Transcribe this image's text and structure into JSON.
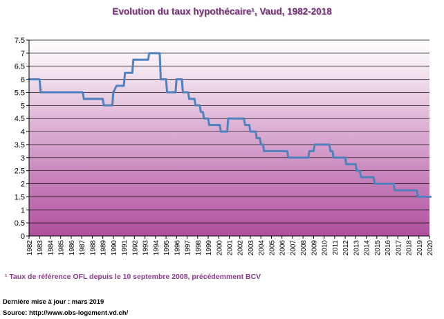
{
  "chart_data": {
    "type": "line",
    "title": "Evolution du taux hypothécaire¹, Vaud, 1982-2018",
    "xlabel": "",
    "ylabel": "",
    "xlim": [
      1982,
      2020
    ],
    "ylim": [
      0,
      7.5
    ],
    "ytick_step": 0.5,
    "x_ticks": [
      "1982",
      "1983",
      "1984",
      "1985",
      "1986",
      "1987",
      "1988",
      "1989",
      "1990",
      "1991",
      "1992",
      "1993",
      "1994",
      "1995",
      "1996",
      "1997",
      "1998",
      "1999",
      "2000",
      "2001",
      "2002",
      "2003",
      "2004",
      "2005",
      "2006",
      "2007",
      "2008",
      "2009",
      "2010",
      "2011",
      "2012",
      "2013",
      "2014",
      "2015",
      "2016",
      "2017",
      "2018",
      "2019",
      "2020"
    ],
    "grid": "horizontal",
    "legend": "none",
    "series": [
      {
        "color": "#4f81bd",
        "points": [
          [
            1982.0,
            6.0
          ],
          [
            1983.0,
            6.0
          ],
          [
            1983.1,
            5.5
          ],
          [
            1987.1,
            5.5
          ],
          [
            1987.2,
            5.25
          ],
          [
            1989.0,
            5.25
          ],
          [
            1989.1,
            5.0
          ],
          [
            1989.9,
            5.0
          ],
          [
            1990.0,
            5.5
          ],
          [
            1990.3,
            5.75
          ],
          [
            1991.0,
            5.75
          ],
          [
            1991.1,
            6.25
          ],
          [
            1991.8,
            6.25
          ],
          [
            1991.9,
            6.75
          ],
          [
            1993.3,
            6.75
          ],
          [
            1993.4,
            7.0
          ],
          [
            1994.4,
            7.0
          ],
          [
            1994.5,
            6.0
          ],
          [
            1995.0,
            6.0
          ],
          [
            1995.1,
            5.5
          ],
          [
            1995.9,
            5.5
          ],
          [
            1996.0,
            6.0
          ],
          [
            1996.5,
            6.0
          ],
          [
            1996.6,
            5.5
          ],
          [
            1997.1,
            5.5
          ],
          [
            1997.2,
            5.25
          ],
          [
            1997.7,
            5.25
          ],
          [
            1997.8,
            5.0
          ],
          [
            1998.2,
            5.0
          ],
          [
            1998.3,
            4.75
          ],
          [
            1998.5,
            4.75
          ],
          [
            1998.6,
            4.5
          ],
          [
            1999.0,
            4.5
          ],
          [
            1999.1,
            4.25
          ],
          [
            2000.1,
            4.25
          ],
          [
            2000.2,
            4.0
          ],
          [
            2000.8,
            4.0
          ],
          [
            2000.9,
            4.5
          ],
          [
            2002.4,
            4.5
          ],
          [
            2002.5,
            4.25
          ],
          [
            2002.9,
            4.25
          ],
          [
            2003.0,
            4.0
          ],
          [
            2003.5,
            4.0
          ],
          [
            2003.6,
            3.75
          ],
          [
            2003.9,
            3.75
          ],
          [
            2004.0,
            3.5
          ],
          [
            2004.2,
            3.5
          ],
          [
            2004.3,
            3.25
          ],
          [
            2006.5,
            3.25
          ],
          [
            2006.6,
            3.0
          ],
          [
            2008.5,
            3.0
          ],
          [
            2008.6,
            3.25
          ],
          [
            2009.0,
            3.25
          ],
          [
            2009.1,
            3.5
          ],
          [
            2010.5,
            3.5
          ],
          [
            2010.6,
            3.25
          ],
          [
            2010.8,
            3.25
          ],
          [
            2010.9,
            3.0
          ],
          [
            2012.0,
            3.0
          ],
          [
            2012.1,
            2.75
          ],
          [
            2013.0,
            2.75
          ],
          [
            2013.1,
            2.5
          ],
          [
            2013.4,
            2.5
          ],
          [
            2013.5,
            2.25
          ],
          [
            2014.7,
            2.25
          ],
          [
            2014.8,
            2.0
          ],
          [
            2016.6,
            2.0
          ],
          [
            2016.7,
            1.75
          ],
          [
            2018.8,
            1.75
          ],
          [
            2018.9,
            1.5
          ],
          [
            2020.1,
            1.5
          ]
        ]
      }
    ]
  },
  "footnote": "¹ Taux de référence OFL depuis le 10 septembre 2008, précédemment BCV",
  "update_line": "Dernière mise à jour : mars 2019",
  "source_line": "Source: http://www.obs-logement.vd.ch/",
  "colors": {
    "title": "#7a2f7a",
    "footnote": "#8a3a8a",
    "line": "#4f81bd",
    "gradient_top": "#ffffff",
    "gradient_bottom": "#b04f9e"
  }
}
